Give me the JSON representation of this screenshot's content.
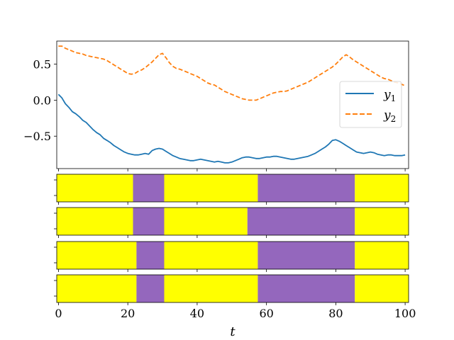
{
  "chart_data": [
    {
      "type": "line",
      "xlim": [
        -0.5,
        101
      ],
      "ylim": [
        -0.95,
        0.82
      ],
      "yticks": [
        0.5,
        0.0,
        -0.5
      ],
      "ytick_labels": [
        "0.5",
        "0.0",
        "−0.5"
      ],
      "legend_position": "center-right",
      "series": [
        {
          "name": "y1",
          "color": "#1f77b4",
          "style": "solid",
          "x": [
            0,
            1,
            2,
            3,
            4,
            5,
            6,
            7,
            8,
            9,
            10,
            11,
            12,
            13,
            14,
            15,
            16,
            17,
            18,
            19,
            20,
            21,
            22,
            23,
            24,
            25,
            26,
            27,
            28,
            29,
            30,
            31,
            32,
            33,
            34,
            35,
            36,
            37,
            38,
            39,
            40,
            41,
            42,
            43,
            44,
            45,
            46,
            47,
            48,
            49,
            50,
            51,
            52,
            53,
            54,
            55,
            56,
            57,
            58,
            59,
            60,
            61,
            62,
            63,
            64,
            65,
            66,
            67,
            68,
            69,
            70,
            71,
            72,
            73,
            74,
            75,
            76,
            77,
            78,
            79,
            80,
            81,
            82,
            83,
            84,
            85,
            86,
            87,
            88,
            89,
            90,
            91,
            92,
            93,
            94,
            95,
            96,
            97,
            98,
            99,
            100
          ],
          "y": [
            0.08,
            0.03,
            -0.05,
            -0.1,
            -0.16,
            -0.19,
            -0.23,
            -0.28,
            -0.31,
            -0.36,
            -0.41,
            -0.45,
            -0.48,
            -0.53,
            -0.56,
            -0.59,
            -0.63,
            -0.66,
            -0.69,
            -0.72,
            -0.74,
            -0.75,
            -0.76,
            -0.76,
            -0.75,
            -0.74,
            -0.75,
            -0.7,
            -0.68,
            -0.67,
            -0.68,
            -0.71,
            -0.74,
            -0.77,
            -0.79,
            -0.81,
            -0.82,
            -0.83,
            -0.84,
            -0.84,
            -0.83,
            -0.82,
            -0.83,
            -0.84,
            -0.85,
            -0.86,
            -0.85,
            -0.86,
            -0.87,
            -0.87,
            -0.86,
            -0.84,
            -0.82,
            -0.8,
            -0.79,
            -0.79,
            -0.8,
            -0.81,
            -0.81,
            -0.8,
            -0.79,
            -0.79,
            -0.78,
            -0.78,
            -0.79,
            -0.8,
            -0.81,
            -0.82,
            -0.82,
            -0.81,
            -0.8,
            -0.79,
            -0.78,
            -0.76,
            -0.74,
            -0.71,
            -0.68,
            -0.65,
            -0.61,
            -0.56,
            -0.55,
            -0.57,
            -0.6,
            -0.63,
            -0.66,
            -0.69,
            -0.72,
            -0.73,
            -0.74,
            -0.73,
            -0.72,
            -0.73,
            -0.75,
            -0.76,
            -0.77,
            -0.76,
            -0.76,
            -0.77,
            -0.77,
            -0.77,
            -0.76
          ]
        },
        {
          "name": "y2",
          "color": "#ff7f0e",
          "style": "dashed",
          "x": [
            0,
            1,
            2,
            3,
            4,
            5,
            6,
            7,
            8,
            9,
            10,
            11,
            12,
            13,
            14,
            15,
            16,
            17,
            18,
            19,
            20,
            21,
            22,
            23,
            24,
            25,
            26,
            27,
            28,
            29,
            30,
            31,
            32,
            33,
            34,
            35,
            36,
            37,
            38,
            39,
            40,
            41,
            42,
            43,
            44,
            45,
            46,
            47,
            48,
            49,
            50,
            51,
            52,
            53,
            54,
            55,
            56,
            57,
            58,
            59,
            60,
            61,
            62,
            63,
            64,
            65,
            66,
            67,
            68,
            69,
            70,
            71,
            72,
            73,
            74,
            75,
            76,
            77,
            78,
            79,
            80,
            81,
            82,
            83,
            84,
            85,
            86,
            87,
            88,
            89,
            90,
            91,
            92,
            93,
            94,
            95,
            96,
            97,
            98,
            99,
            100
          ],
          "y": [
            0.75,
            0.75,
            0.72,
            0.7,
            0.68,
            0.66,
            0.65,
            0.64,
            0.62,
            0.61,
            0.6,
            0.59,
            0.58,
            0.57,
            0.55,
            0.52,
            0.49,
            0.46,
            0.43,
            0.4,
            0.37,
            0.36,
            0.37,
            0.4,
            0.42,
            0.45,
            0.49,
            0.53,
            0.58,
            0.63,
            0.65,
            0.59,
            0.52,
            0.47,
            0.44,
            0.43,
            0.41,
            0.39,
            0.37,
            0.35,
            0.33,
            0.3,
            0.27,
            0.24,
            0.22,
            0.21,
            0.18,
            0.15,
            0.12,
            0.1,
            0.08,
            0.06,
            0.04,
            0.02,
            0.01,
            0.0,
            0.0,
            0.0,
            0.02,
            0.04,
            0.06,
            0.08,
            0.1,
            0.11,
            0.12,
            0.12,
            0.13,
            0.15,
            0.17,
            0.19,
            0.21,
            0.23,
            0.25,
            0.28,
            0.31,
            0.34,
            0.37,
            0.4,
            0.43,
            0.46,
            0.5,
            0.55,
            0.6,
            0.63,
            0.6,
            0.56,
            0.53,
            0.5,
            0.47,
            0.44,
            0.41,
            0.38,
            0.35,
            0.32,
            0.3,
            0.29,
            0.27,
            0.25,
            0.24,
            0.22,
            0.2
          ]
        }
      ]
    },
    {
      "type": "segments",
      "xlim": [
        -0.5,
        101
      ],
      "xticks": [
        0,
        20,
        40,
        60,
        80,
        100
      ],
      "xtick_labels": [
        "0",
        "20",
        "40",
        "60",
        "80",
        "100"
      ],
      "xlabel": "t",
      "state_colors": {
        "0": "#ffff00",
        "1": "#9467bd"
      },
      "rows": [
        {
          "boundaries": [
            -0.5,
            21.5,
            30.5,
            57.5,
            85.5,
            101
          ],
          "states": [
            0,
            1,
            0,
            1,
            0
          ]
        },
        {
          "boundaries": [
            -0.5,
            21.5,
            30.5,
            54.5,
            85.5,
            101
          ],
          "states": [
            0,
            1,
            0,
            1,
            0
          ]
        },
        {
          "boundaries": [
            -0.5,
            22.5,
            30.5,
            57.5,
            85.5,
            101
          ],
          "states": [
            0,
            1,
            0,
            1,
            0
          ]
        },
        {
          "boundaries": [
            -0.5,
            22.5,
            30.5,
            57.5,
            85.5,
            101
          ],
          "states": [
            0,
            1,
            0,
            1,
            0
          ]
        }
      ]
    }
  ]
}
